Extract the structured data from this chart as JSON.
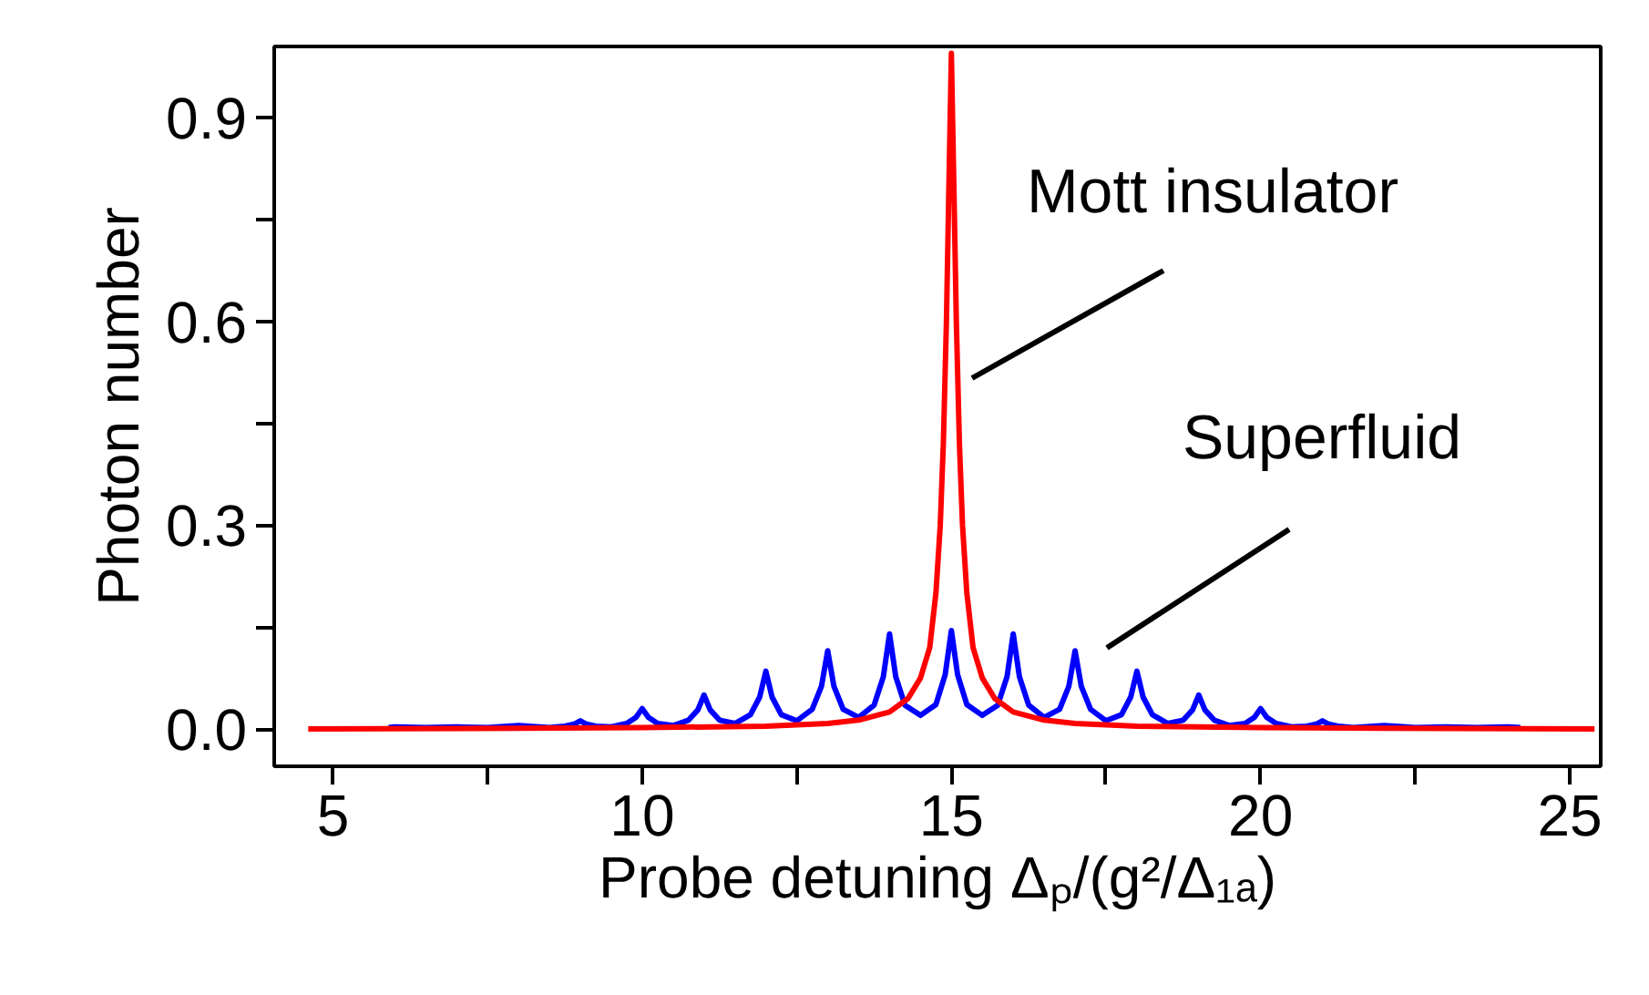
{
  "chart_data": {
    "type": "line",
    "xlabel": "Probe detuning Δₚ/(g²/Δ₁ₐ)",
    "ylabel": "Photon number",
    "xlim": [
      4.05,
      25.5
    ],
    "ylim": [
      -0.055,
      1.005
    ],
    "xticks": [
      5,
      {
        "value": 7.5,
        "label": null
      },
      10,
      {
        "value": 12.5,
        "label": null
      },
      15,
      {
        "value": 17.5,
        "label": null
      },
      20,
      {
        "value": 22.5,
        "label": null
      },
      25
    ],
    "yticks": [
      {
        "value": 0,
        "label": "0.0"
      },
      {
        "value": 0.15,
        "label": null
      },
      {
        "value": 0.3,
        "label": "0.3"
      },
      {
        "value": 0.45,
        "label": null
      },
      {
        "value": 0.6,
        "label": "0.6"
      },
      {
        "value": 0.75,
        "label": null
      },
      {
        "value": 0.9,
        "label": "0.9"
      }
    ],
    "grid": false,
    "line_style": "solid",
    "annotations": [
      "Mott insulator",
      "Superfluid"
    ],
    "series": [
      {
        "color": "#0000ff",
        "x": [
          5.9,
          6,
          6.5,
          7,
          7.5,
          8,
          8.5,
          8.75,
          8.9,
          9,
          9.1,
          9.25,
          9.5,
          9.75,
          9.9,
          10,
          10.1,
          10.25,
          10.5,
          10.75,
          10.9,
          11,
          11.1,
          11.25,
          11.5,
          11.75,
          11.9,
          12,
          12.1,
          12.25,
          12.5,
          12.75,
          12.9,
          13,
          13.1,
          13.25,
          13.5,
          13.75,
          13.9,
          14,
          14.1,
          14.25,
          14.5,
          14.75,
          14.9,
          15,
          15.1,
          15.25,
          15.5,
          15.75,
          15.9,
          16,
          16.1,
          16.25,
          16.5,
          16.75,
          16.9,
          17,
          17.1,
          17.25,
          17.5,
          17.75,
          17.9,
          18,
          18.1,
          18.25,
          18.5,
          18.75,
          18.9,
          19,
          19.1,
          19.25,
          19.5,
          19.75,
          19.9,
          20,
          20.1,
          20.25,
          20.5,
          20.75,
          20.9,
          21,
          21.1,
          21.25,
          21.5,
          22,
          22.5,
          23,
          23.5,
          24,
          24.2
        ],
        "values": [
          0.002,
          0.003,
          0.002,
          0.003,
          0.002,
          0.005,
          0.002,
          0.004,
          0.007,
          0.012,
          0.007,
          0.004,
          0.003,
          0.008,
          0.017,
          0.03,
          0.017,
          0.008,
          0.005,
          0.013,
          0.028,
          0.05,
          0.028,
          0.013,
          0.008,
          0.021,
          0.047,
          0.085,
          0.047,
          0.021,
          0.012,
          0.029,
          0.063,
          0.115,
          0.063,
          0.029,
          0.017,
          0.035,
          0.077,
          0.14,
          0.077,
          0.035,
          0.02,
          0.036,
          0.08,
          0.145,
          0.08,
          0.036,
          0.02,
          0.035,
          0.077,
          0.14,
          0.077,
          0.035,
          0.017,
          0.029,
          0.063,
          0.115,
          0.063,
          0.029,
          0.012,
          0.021,
          0.047,
          0.085,
          0.047,
          0.021,
          0.008,
          0.013,
          0.028,
          0.05,
          0.028,
          0.013,
          0.005,
          0.008,
          0.017,
          0.03,
          0.017,
          0.008,
          0.003,
          0.004,
          0.007,
          0.012,
          0.007,
          0.004,
          0.002,
          0.005,
          0.002,
          0.003,
          0.002,
          0.003,
          0.002
        ]
      },
      {
        "color": "#ff0000",
        "x": [
          4.6,
          8,
          10,
          12,
          13,
          13.5,
          14,
          14.3,
          14.5,
          14.65,
          14.75,
          14.82,
          14.87,
          14.92,
          14.96,
          15,
          15.04,
          15.08,
          15.13,
          15.18,
          15.25,
          15.35,
          15.5,
          15.7,
          16,
          16.5,
          17,
          18,
          20,
          22,
          25.4
        ],
        "values": [
          0,
          0.001,
          0.002,
          0.004,
          0.008,
          0.013,
          0.025,
          0.045,
          0.075,
          0.12,
          0.2,
          0.3,
          0.42,
          0.6,
          0.8,
          0.995,
          0.8,
          0.6,
          0.42,
          0.3,
          0.2,
          0.12,
          0.075,
          0.045,
          0.025,
          0.013,
          0.008,
          0.004,
          0.002,
          0.001,
          0
        ]
      }
    ]
  }
}
